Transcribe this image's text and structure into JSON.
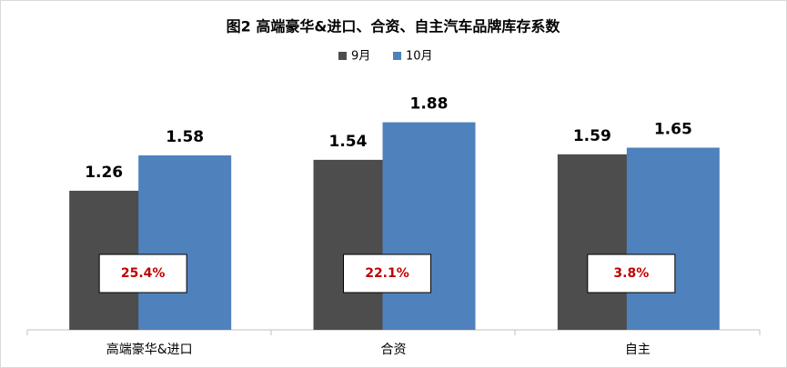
{
  "chart_data": {
    "type": "bar",
    "title": "图2 高端豪华&进口、合资、自主汽车品牌库存系数",
    "categories": [
      "高端豪华&进口",
      "合资",
      "自主"
    ],
    "series": [
      {
        "name": "9月",
        "color": "#4d4d4d",
        "values": [
          1.26,
          1.54,
          1.59
        ]
      },
      {
        "name": "10月",
        "color": "#4f81bd",
        "values": [
          1.58,
          1.88,
          1.65
        ]
      }
    ],
    "annotations": [
      "25.4%",
      "22.1%",
      "3.8%"
    ],
    "annotation_color": "#c00000",
    "ylim": [
      0,
      2
    ],
    "legend": "top"
  }
}
